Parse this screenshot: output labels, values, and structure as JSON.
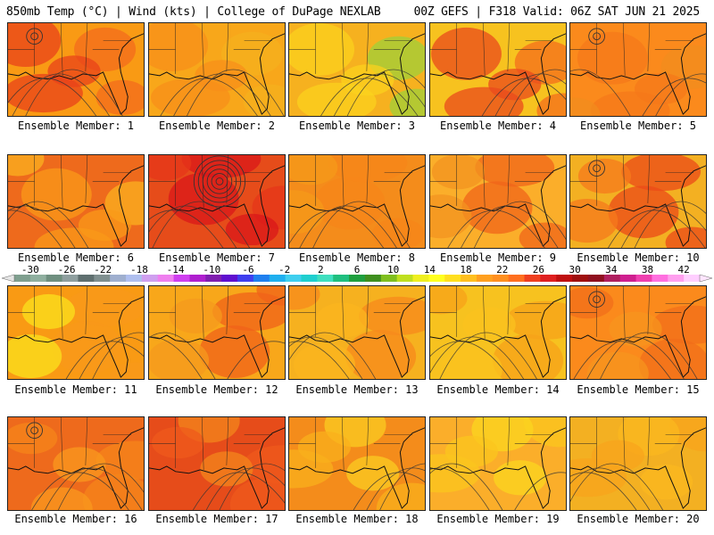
{
  "header": {
    "left": "850mb Temp (°C) | Wind (kts) | College of DuPage NEXLAB",
    "right": "00Z GEFS | F318 Valid: 06Z SAT JUN 21 2025"
  },
  "members": [
    {
      "label": "Ensemble Member: 1"
    },
    {
      "label": "Ensemble Member: 2"
    },
    {
      "label": "Ensemble Member: 3"
    },
    {
      "label": "Ensemble Member: 4"
    },
    {
      "label": "Ensemble Member: 5"
    },
    {
      "label": "Ensemble Member: 6"
    },
    {
      "label": "Ensemble Member: 7"
    },
    {
      "label": "Ensemble Member: 8"
    },
    {
      "label": "Ensemble Member: 9"
    },
    {
      "label": "Ensemble Member: 10"
    },
    {
      "label": "Ensemble Member: 11"
    },
    {
      "label": "Ensemble Member: 12"
    },
    {
      "label": "Ensemble Member: 13"
    },
    {
      "label": "Ensemble Member: 14"
    },
    {
      "label": "Ensemble Member: 15"
    },
    {
      "label": "Ensemble Member: 16"
    },
    {
      "label": "Ensemble Member: 17"
    },
    {
      "label": "Ensemble Member: 18"
    },
    {
      "label": "Ensemble Member: 19"
    },
    {
      "label": "Ensemble Member: 20"
    }
  ],
  "colorbar": {
    "labels": [
      "-30",
      "-26",
      "-22",
      "-18",
      "-14",
      "-10",
      "-6",
      "-2",
      "2",
      "6",
      "10",
      "14",
      "18",
      "22",
      "26",
      "30",
      "34",
      "38",
      "42"
    ],
    "colors": [
      "#7f9f8f",
      "#8faf9f",
      "#6f8f7f",
      "#8f9f9f",
      "#5f6f6f",
      "#7f8f8f",
      "#9fafcf",
      "#afbfef",
      "#cf9fef",
      "#ef7fef",
      "#cf3fef",
      "#af1fcf",
      "#7f1faf",
      "#5f0fcf",
      "#3f3fef",
      "#1f7fef",
      "#1fafef",
      "#3fcfef",
      "#1fcfcf",
      "#3fdfbf",
      "#1fbf7f",
      "#1f9f3f",
      "#3f8f1f",
      "#7fbf1f",
      "#bfdf1f",
      "#efef1f",
      "#ffff1f",
      "#ffdf1f",
      "#ffbf1f",
      "#ff9f1f",
      "#ff8f1f",
      "#ff6f1f",
      "#ef3f1f",
      "#df1f1f",
      "#bf0f0f",
      "#9f0f0f",
      "#8f0f1f",
      "#af1f5f",
      "#cf1f8f",
      "#ef3faf",
      "#ff6fdf",
      "#ff9fef",
      "#ffcfff"
    ]
  }
}
